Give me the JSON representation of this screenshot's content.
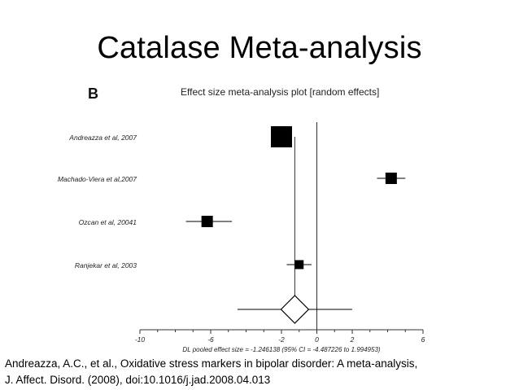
{
  "slide": {
    "title": "Catalase Meta-analysis",
    "panel_letter": "B",
    "citation_line1": "Andreazza, A.C., et al., Oxidative stress markers in bipolar disorder: A meta-analysis,",
    "citation_line2": "J. Affect. Disord. (2008), doi:10.1016/j.jad.2008.04.013"
  },
  "chart_data": {
    "type": "forest",
    "title": "Effect size meta-analysis plot [random effects]",
    "xlim": [
      -10,
      6
    ],
    "xticks": [
      -10,
      -6,
      -2,
      0,
      2,
      6
    ],
    "xtick_labels": [
      "-10",
      "-6",
      "-2",
      "0",
      "2",
      "6"
    ],
    "minor_ticks": [
      -9,
      -8,
      -7,
      -5,
      -4,
      -3,
      -1,
      1,
      3,
      4,
      5
    ],
    "null_line": 0,
    "studies": [
      {
        "label": "Andreazza et al, 2007",
        "effect": -2.0,
        "ci": [
          -2.4,
          -1.6
        ],
        "weight": "large"
      },
      {
        "label": "Machado-Viera et al,2007",
        "effect": 4.2,
        "ci": [
          3.4,
          5.0
        ],
        "weight": "medium"
      },
      {
        "label": "Ozcan et al, 20041",
        "effect": -6.2,
        "ci": [
          -7.4,
          -4.8
        ],
        "weight": "medium"
      },
      {
        "label": "Ranjekar et al, 2003",
        "effect": -1.0,
        "ci": [
          -1.7,
          -0.3
        ],
        "weight": "small"
      }
    ],
    "pooled": {
      "effect": -1.246138,
      "ci": [
        -4.487226,
        1.994953
      ],
      "label": "DL pooled effect size = -1.246138  (95% CI = -4.487226 to 1.994953)"
    },
    "colors": {
      "marks": "#000000",
      "axis": "#333333"
    }
  }
}
